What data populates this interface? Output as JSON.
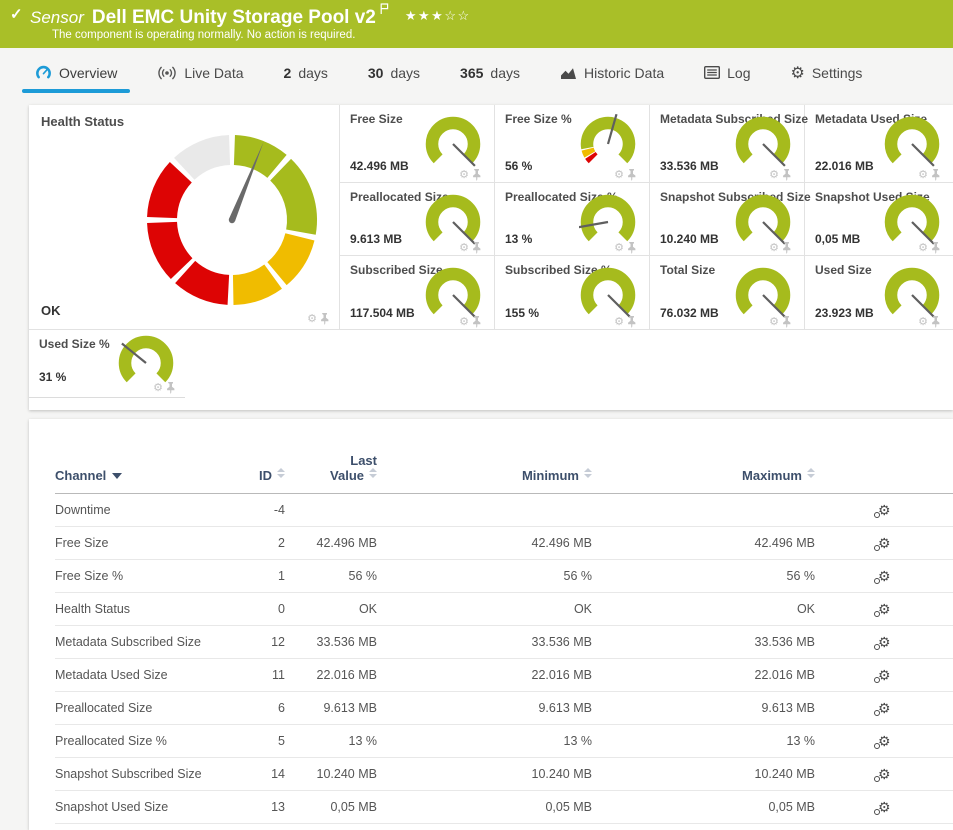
{
  "icons": {
    "check": "✓",
    "gear": "⚙",
    "star_filled": "★",
    "star_empty": "☆"
  },
  "header": {
    "kind_label": "Sensor",
    "title": "Dell EMC Unity Storage Pool v2",
    "message": "The component is operating normally. No action is required.",
    "stars_filled": 3,
    "stars_total": 5,
    "background": "#a9bf28"
  },
  "tabs": [
    {
      "id": "overview",
      "label": "Overview",
      "icon": "gauge-icon",
      "active": true
    },
    {
      "id": "live-data",
      "label": "Live Data",
      "icon": "broadcast-icon",
      "active": false
    },
    {
      "id": "2-days",
      "prefix": "2",
      "label": "days",
      "active": false
    },
    {
      "id": "30-days",
      "prefix": "30",
      "label": "days",
      "active": false
    },
    {
      "id": "365-days",
      "prefix": "365",
      "label": "days",
      "active": false
    },
    {
      "id": "historic-data",
      "label": "Historic Data",
      "icon": "historic-chart-icon",
      "active": false
    },
    {
      "id": "log",
      "label": "Log",
      "icon": "log-icon",
      "active": false
    },
    {
      "id": "settings",
      "label": "Settings",
      "icon": "settings-gear-icon",
      "active": false
    }
  ],
  "colors": {
    "green": "#a6bb1d",
    "yellow": "#f0bc00",
    "red": "#dd0404",
    "gray_segment": "#e9e9e9",
    "accent_blue": "#1d9bd7",
    "needle": "#6a6a6a"
  },
  "health_gauge": {
    "label": "Health Status",
    "value": "OK",
    "needle_deg": 22,
    "segments": [
      {
        "color": "#a6bb1d",
        "from": 2,
        "to": 40
      },
      {
        "color": "#a6bb1d",
        "from": 44,
        "to": 100
      },
      {
        "color": "#f0bc00",
        "from": 104,
        "to": 140
      },
      {
        "color": "#f0bc00",
        "from": 144,
        "to": 179
      },
      {
        "color": "#dd0404",
        "from": 183,
        "to": 222
      },
      {
        "color": "#dd0404",
        "from": 226,
        "to": 268
      },
      {
        "color": "#dd0404",
        "from": 272,
        "to": 313
      },
      {
        "color": "#e9e9e9",
        "from": 317,
        "to": 358
      }
    ]
  },
  "gauges": [
    {
      "label": "Free Size",
      "value": "42.496 MB",
      "needle_deg": 135
    },
    {
      "label": "Free Size %",
      "value": "56 %",
      "needle_deg": 16,
      "bands": [
        {
          "color": "#dd0404",
          "from": -135,
          "to": -123
        },
        {
          "color": "#f0bc00",
          "from": -120,
          "to": -104
        },
        {
          "color": "#a6bb1d",
          "from": -101,
          "to": 135
        }
      ]
    },
    {
      "label": "Metadata Subscribed Size",
      "value": "33.536 MB",
      "needle_deg": 135
    },
    {
      "label": "Metadata Used Size",
      "value": "22.016 MB",
      "needle_deg": 135
    },
    {
      "label": "Preallocated Size",
      "value": "9.613 MB",
      "needle_deg": 135
    },
    {
      "label": "Preallocated Size %",
      "value": "13 %",
      "needle_deg": -100
    },
    {
      "label": "Snapshot Subscribed Size",
      "value": "10.240 MB",
      "needle_deg": 135
    },
    {
      "label": "Snapshot Used Size",
      "value": "0,05 MB",
      "needle_deg": 135
    },
    {
      "label": "Subscribed Size",
      "value": "117.504 MB",
      "needle_deg": 135
    },
    {
      "label": "Subscribed Size %",
      "value": "155 %",
      "needle_deg": 135
    },
    {
      "label": "Total Size",
      "value": "76.032 MB",
      "needle_deg": 135
    },
    {
      "label": "Used Size",
      "value": "23.923 MB",
      "needle_deg": 135
    }
  ],
  "used_pct_gauge": {
    "label": "Used Size %",
    "value": "31 %",
    "needle_deg": -51
  },
  "table": {
    "columns": [
      {
        "label": "Channel",
        "align": "left",
        "sort": "active-desc"
      },
      {
        "label": "ID",
        "align": "right",
        "sort": "both"
      },
      {
        "label": "Last Value",
        "align": "right",
        "sort": "both",
        "wrap": true
      },
      {
        "label": "Minimum",
        "align": "right",
        "sort": "both"
      },
      {
        "label": "Maximum",
        "align": "right",
        "sort": "both"
      },
      {
        "label": "",
        "align": "right",
        "sort": "none"
      }
    ],
    "rows": [
      {
        "channel": "Downtime",
        "id": "-4",
        "last": "",
        "min": "",
        "max": ""
      },
      {
        "channel": "Free Size",
        "id": "2",
        "last": "42.496 MB",
        "min": "42.496 MB",
        "max": "42.496 MB"
      },
      {
        "channel": "Free Size %",
        "id": "1",
        "last": "56 %",
        "min": "56 %",
        "max": "56 %"
      },
      {
        "channel": "Health Status",
        "id": "0",
        "last": "OK",
        "min": "OK",
        "max": "OK"
      },
      {
        "channel": "Metadata Subscribed Size",
        "id": "12",
        "last": "33.536 MB",
        "min": "33.536 MB",
        "max": "33.536 MB"
      },
      {
        "channel": "Metadata Used Size",
        "id": "11",
        "last": "22.016 MB",
        "min": "22.016 MB",
        "max": "22.016 MB"
      },
      {
        "channel": "Preallocated Size",
        "id": "6",
        "last": "9.613 MB",
        "min": "9.613 MB",
        "max": "9.613 MB"
      },
      {
        "channel": "Preallocated Size %",
        "id": "5",
        "last": "13 %",
        "min": "13 %",
        "max": "13 %"
      },
      {
        "channel": "Snapshot Subscribed Size",
        "id": "14",
        "last": "10.240 MB",
        "min": "10.240 MB",
        "max": "10.240 MB"
      },
      {
        "channel": "Snapshot Used Size",
        "id": "13",
        "last": "0,05 MB",
        "min": "0,05 MB",
        "max": "0,05 MB"
      }
    ]
  }
}
